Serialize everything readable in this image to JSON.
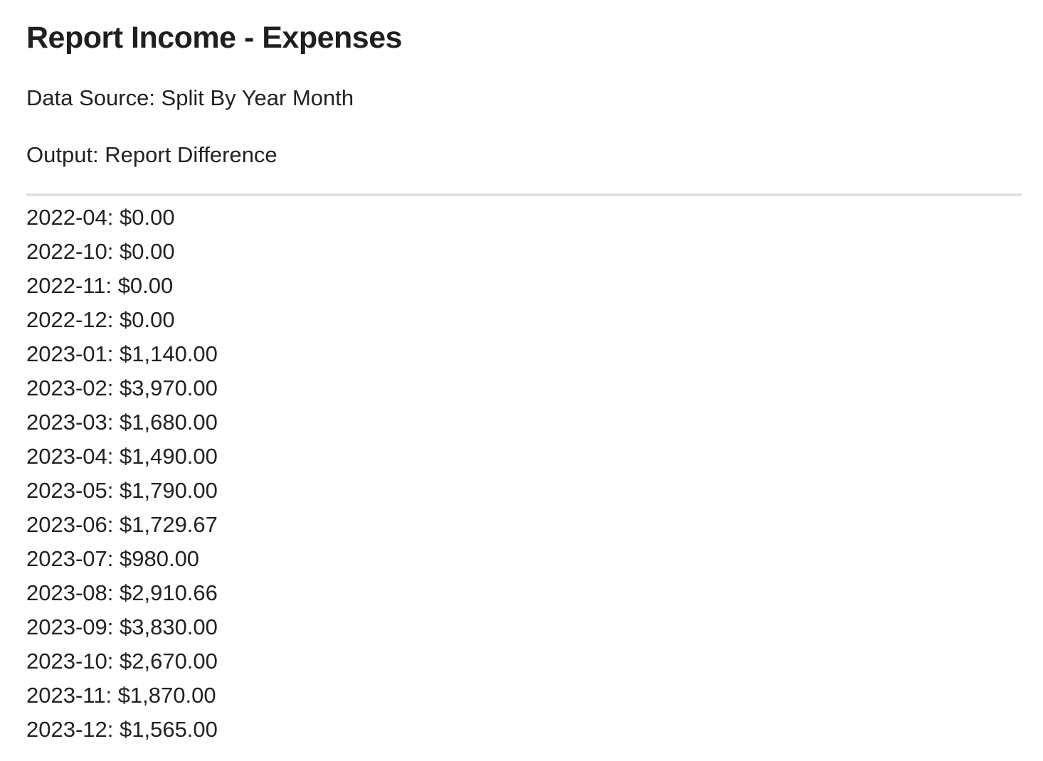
{
  "report": {
    "title": "Report Income - Expenses",
    "data_source": "Data Source: Split By Year Month",
    "output": "Output: Report Difference"
  },
  "entries": [
    "2022-04: $0.00",
    "2022-10: $0.00",
    "2022-11: $0.00",
    "2022-12: $0.00",
    "2023-01: $1,140.00",
    "2023-02: $3,970.00",
    "2023-03: $1,680.00",
    "2023-04: $1,490.00",
    "2023-05: $1,790.00",
    "2023-06: $1,729.67",
    "2023-07: $980.00",
    "2023-08: $2,910.66",
    "2023-09: $3,830.00",
    "2023-10: $2,670.00",
    "2023-11: $1,870.00",
    "2023-12: $1,565.00"
  ]
}
